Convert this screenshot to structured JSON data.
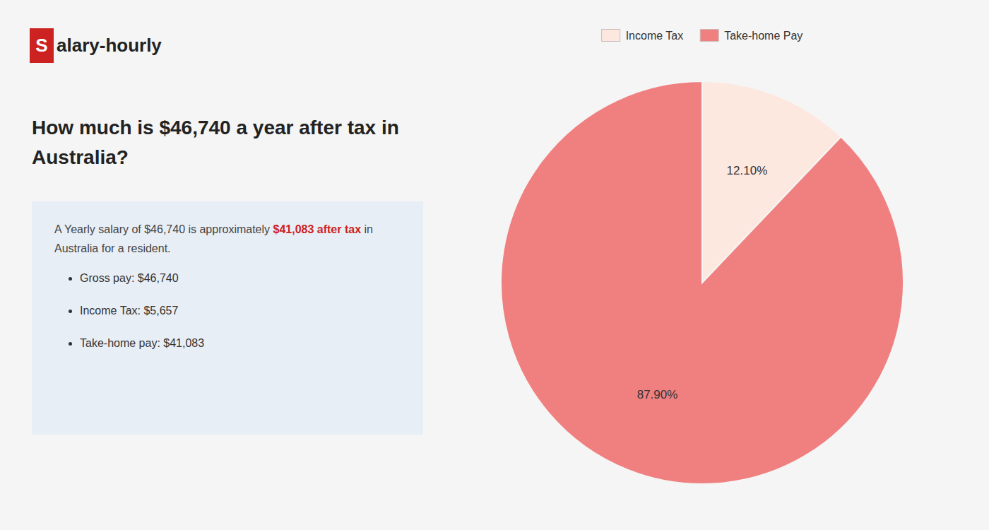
{
  "chart_data": {
    "type": "pie",
    "title": "How much is $46,740 a year after tax in Australia?",
    "categories": [
      "Income Tax",
      "Take-home Pay"
    ],
    "values": [
      12.1,
      87.9
    ],
    "value_labels": [
      "12.10%",
      "87.90%"
    ],
    "colors": [
      "#fde8e0",
      "#f08080"
    ],
    "data_labels": true,
    "legend": "top",
    "annotations": [
      "S",
      "alary-hourly",
      "A Yearly salary of $46,740 is approximately ",
      "$41,083 after tax",
      " in",
      "Australia for a resident.",
      "Gross pay: $46,740",
      "Income Tax: $5,657",
      "Take-home pay: $41,083"
    ]
  }
}
